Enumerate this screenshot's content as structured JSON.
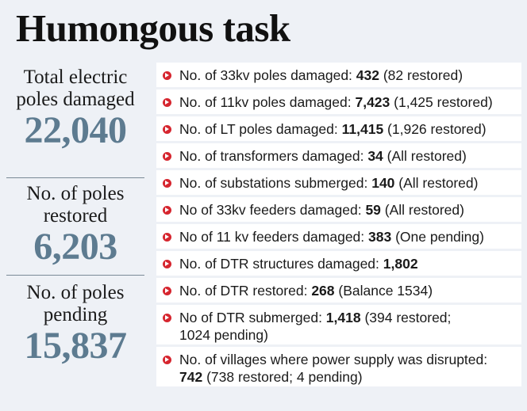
{
  "title": "Humongous task",
  "stats": [
    {
      "label": "Total electric poles damaged",
      "value": "22,040"
    },
    {
      "label": "No. of poles restored",
      "value": "6,203"
    },
    {
      "label": "No. of poles pending",
      "value": "15,837"
    }
  ],
  "items": [
    {
      "label": "No. of 33kv poles damaged: ",
      "value": "432",
      "note": " (82 restored)"
    },
    {
      "label": "No. of 11kv poles damaged: ",
      "value": "7,423",
      "note": " (1,425 restored)"
    },
    {
      "label": "No. of LT poles damaged: ",
      "value": "11,415",
      "note": " (1,926 restored)"
    },
    {
      "label": "No. of transformers damaged: ",
      "value": "34",
      "note": " (All restored)"
    },
    {
      "label": "No. of substations submerged: ",
      "value": "140",
      "note": " (All restored)"
    },
    {
      "label": "No of 33kv feeders damaged: ",
      "value": "59",
      "note": " (All restored)"
    },
    {
      "label": "No of 11 kv feeders damaged: ",
      "value": "383",
      "note": " (One pending)"
    },
    {
      "label": "No. of DTR structures damaged: ",
      "value": "1,802",
      "note": ""
    },
    {
      "label": "No. of DTR restored: ",
      "value": "268",
      "note": " (Balance 1534)"
    },
    {
      "label": "No of DTR submerged: ",
      "value": "1,418",
      "note": " (394 restored;",
      "line2_pre": "",
      "line2": "1024 pending)"
    },
    {
      "label": "No. of villages where power supply was disrupted:",
      "value": "",
      "note": "",
      "line2_pre": "742",
      "line2": " (738 restored; 4 pending)"
    }
  ]
}
